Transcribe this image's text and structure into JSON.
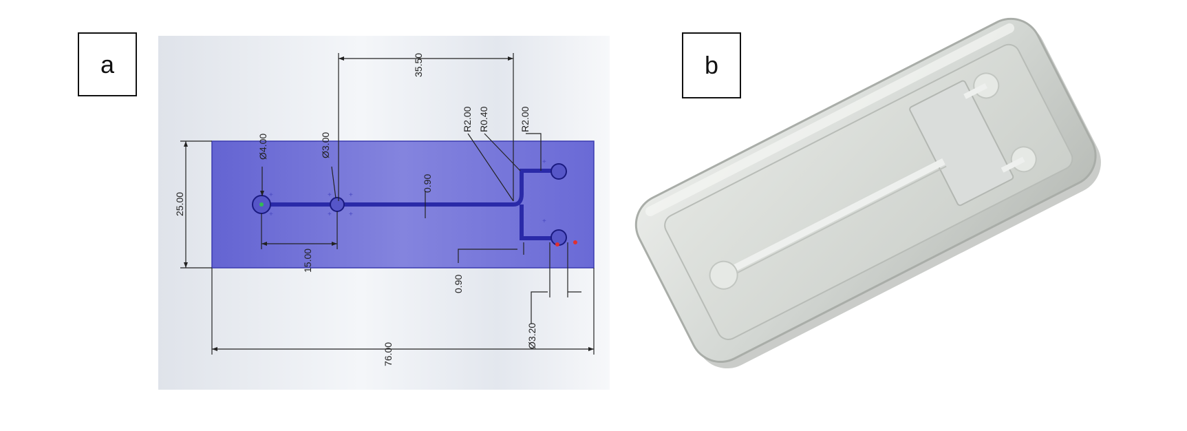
{
  "panels": {
    "a": {
      "label": "a"
    },
    "b": {
      "label": "b"
    }
  },
  "drawing": {
    "dimensions": {
      "inlet_diameter": "Ø4.00",
      "chamber_diameter": "Ø3.00",
      "top_span": "35.50",
      "radius_1": "R2.00",
      "radius_2": "R0.40",
      "radius_3": "R2.00",
      "chip_width": "25.00",
      "channel_width": "0.90",
      "inlet_spacing": "15.00",
      "branch_width": "0.90",
      "outlet_diameter": "Ø3.20",
      "chip_length": "76.00"
    },
    "colors": {
      "chip_fill": "#6e6ed8",
      "channel": "#2a2aa8",
      "background": "#e8ecf2"
    }
  },
  "photo": {
    "colors": {
      "body": "#d9dcd8",
      "edge": "#a9ada8"
    }
  }
}
